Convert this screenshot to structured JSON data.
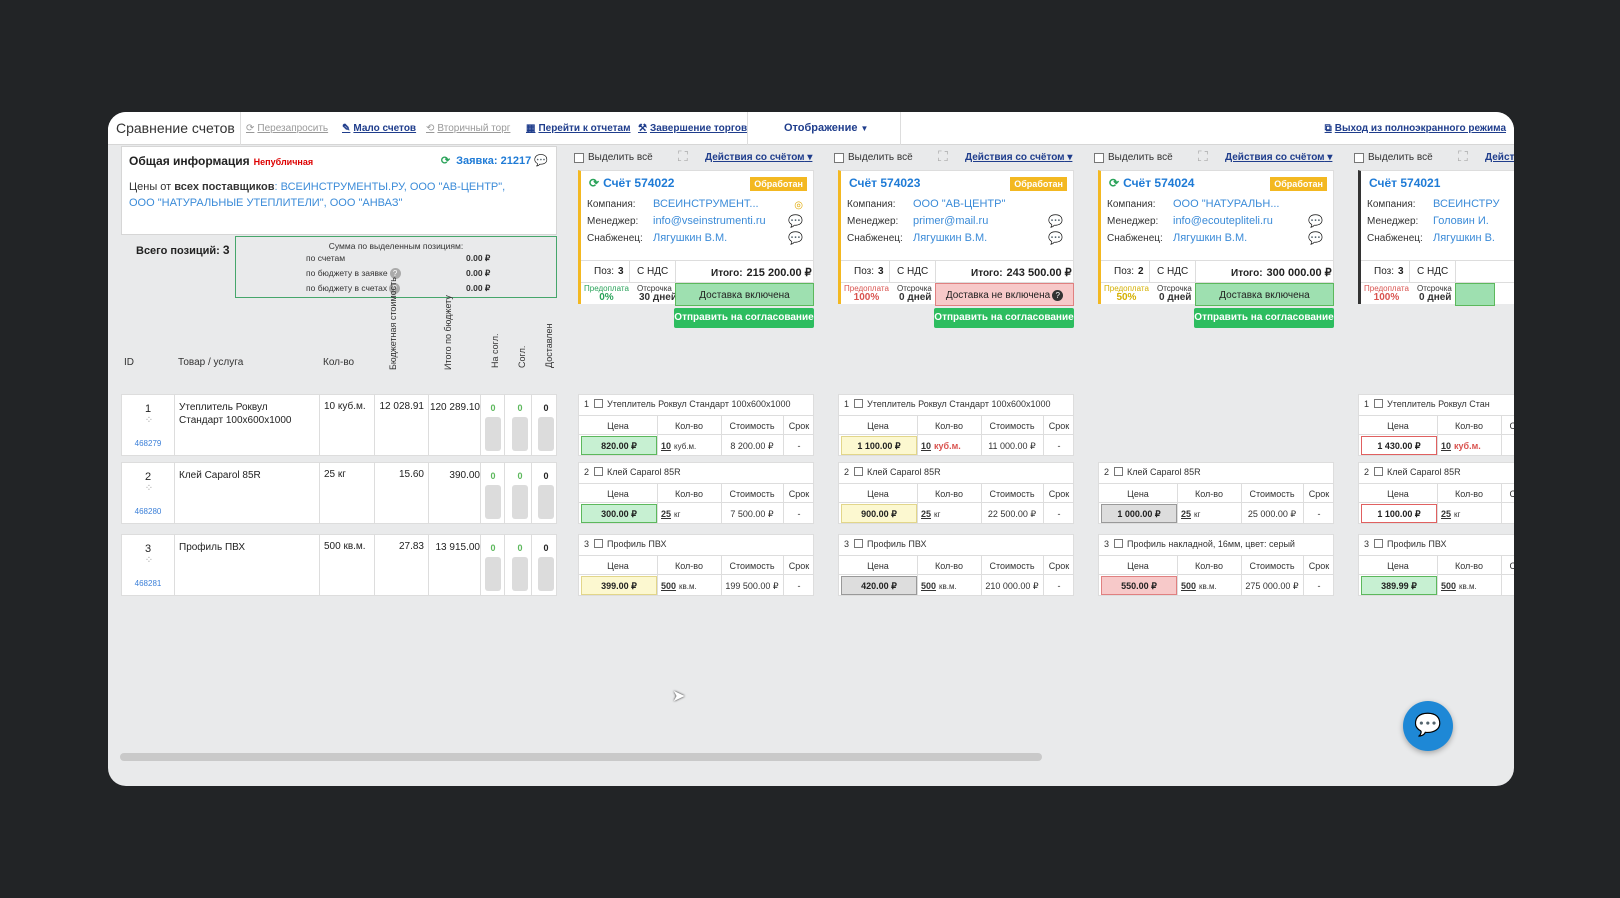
{
  "toolbar": {
    "title": "Сравнение счетов",
    "requery": "Перезапросить",
    "few_invoices": "Мало счетов",
    "secondary": "Вторичный торг",
    "reports": "Перейти к отчетам",
    "finish": "Завершение торгов",
    "display": "Отображение",
    "exit": "Выход из полноэкранного режима"
  },
  "info": {
    "title": "Общая информация",
    "badge": "Непубличная",
    "request": "Заявка: 21217",
    "prices_prefix": "Цены от",
    "prices_bold": "всех поставщиков",
    "prices_suppliers": ": ВСЕИНСТРУМЕНТЫ.РУ, ООО \"АВ-ЦЕНТР\", ООО \"НАТУРАЛЬНЫЕ УТЕПЛИТЕЛИ\", ООО \"АНВАЗ\"",
    "total_positions_label": "Всего позиций:",
    "total_positions": "3",
    "sum_caption": "Сумма по выделенным позициям:",
    "sum_rows": [
      {
        "label": "по счетам",
        "value": "0.00 ₽",
        "q": false
      },
      {
        "label": "по бюджету в заявке",
        "value": "0.00 ₽",
        "q": true
      },
      {
        "label": "по бюджету в счетах",
        "value": "0.00 ₽",
        "q": true
      }
    ]
  },
  "headers": {
    "id": "ID",
    "item": "Товар / услуга",
    "qty": "Кол-во",
    "budget": "Бюджетная стоимость",
    "total_budget": "Итого по бюджету",
    "on_approval": "На согл.",
    "approved": "Согл.",
    "delivered": "Доставлен"
  },
  "positions": [
    {
      "id": "1",
      "num": "468279",
      "name": "Утеплитель Роквул Стандарт 100x600x1000",
      "qty": "10 куб.м.",
      "budget": "12 028.91",
      "total": "120 289.10",
      "a": "0",
      "b": "0",
      "c": "0"
    },
    {
      "id": "2",
      "num": "468280",
      "name": "Клей Caparol 85R",
      "qty": "25 кг",
      "budget": "15.60",
      "total": "390.00",
      "a": "0",
      "b": "0",
      "c": "0"
    },
    {
      "id": "3",
      "num": "468281",
      "name": "Профиль ПВХ",
      "qty": "500 кв.м.",
      "budget": "27.83",
      "total": "13 915.00",
      "a": "0",
      "b": "0",
      "c": "0"
    }
  ],
  "common": {
    "select_all": "Выделить всё",
    "actions": "Действия со счётом",
    "company": "Компания:",
    "manager": "Менеджер:",
    "supplier": "Снабженец:",
    "pos": "Поз:",
    "vat": "С НДС",
    "total": "Итого:",
    "prepay": "Предоплата",
    "delay": "Отсрочка",
    "send": "Отправить на согласование",
    "price": "Цена",
    "qty": "Кол-во",
    "cost": "Стоимость",
    "term": "Срок"
  },
  "invoices": [
    {
      "num": "Счёт 574022",
      "status": "Обработан",
      "company": "ВСЕИНСТРУМЕНТ...",
      "manager": "info@vseinstrumenti.ru",
      "supplier": "Лягушкин В.М.",
      "pos": "3",
      "total": "215 200.00 ₽",
      "prepay": "0%",
      "delay": "30 дней",
      "delivery": "Доставка включена",
      "items": [
        {
          "n": "1",
          "name": "Утеплитель Роквул Стандарт 100x600x1000",
          "price": "820.00 ₽",
          "q": "10",
          "u": "куб.м.",
          "cost": "8 200.00 ₽",
          "term": "-"
        },
        {
          "n": "2",
          "name": "Клей Caparol 85R",
          "price": "300.00 ₽",
          "q": "25",
          "u": "кг",
          "cost": "7 500.00 ₽",
          "term": "-"
        },
        {
          "n": "3",
          "name": "Профиль ПВХ",
          "price": "399.00 ₽",
          "q": "500",
          "u": "кв.м.",
          "cost": "199 500.00 ₽",
          "term": "-"
        }
      ]
    },
    {
      "num": "Счёт 574023",
      "status": "Обработан",
      "company": "ООО \"АВ-ЦЕНТР\"",
      "manager": "primer@mail.ru",
      "supplier": "Лягушкин В.М.",
      "pos": "3",
      "total": "243 500.00 ₽",
      "prepay": "100%",
      "delay": "0 дней",
      "delivery": "Доставка не включена",
      "items": [
        {
          "n": "1",
          "name": "Утеплитель Роквул Стандарт 100x600x1000",
          "price": "1 100.00 ₽",
          "q": "10",
          "u": "куб.м.",
          "cost": "11 000.00 ₽",
          "term": "-"
        },
        {
          "n": "2",
          "name": "Клей Caparol 85R",
          "price": "900.00 ₽",
          "q": "25",
          "u": "кг",
          "cost": "22 500.00 ₽",
          "term": "-"
        },
        {
          "n": "3",
          "name": "Профиль ПВХ",
          "price": "420.00 ₽",
          "q": "500",
          "u": "кв.м.",
          "cost": "210 000.00 ₽",
          "term": "-"
        }
      ]
    },
    {
      "num": "Счёт 574024",
      "status": "Обработан",
      "company": "ООО \"НАТУРАЛЬН...",
      "manager": "info@ecouteplitelі.ru",
      "supplier": "Лягушкин В.М.",
      "pos": "2",
      "total": "300 000.00 ₽",
      "prepay": "50%",
      "delay": "0 дней",
      "delivery": "Доставка включена",
      "items": [
        {
          "n": "2",
          "name": "Клей Caparol 85R",
          "price": "1 000.00 ₽",
          "q": "25",
          "u": "кг",
          "cost": "25 000.00 ₽",
          "term": "-"
        },
        {
          "n": "3",
          "name": "Профиль накладной, 16мм, цвет: серый",
          "price": "550.00 ₽",
          "q": "500",
          "u": "кв.м.",
          "cost": "275 000.00 ₽",
          "term": "-"
        }
      ]
    },
    {
      "num": "Счёт 574021",
      "company": "ВСЕИНСТРУ",
      "manager": "Головин И.",
      "supplier": "Лягушкин В.",
      "pos": "3",
      "prepay": "100%",
      "delay": "0 дней",
      "items": [
        {
          "n": "1",
          "name": "Утеплитель Роквул Стан",
          "price": "1 430.00 ₽",
          "q": "10",
          "u": "куб.м."
        },
        {
          "n": "2",
          "name": "Клей Caparol 85R",
          "price": "1 100.00 ₽",
          "q": "25",
          "u": "кг"
        },
        {
          "n": "3",
          "name": "Профиль ПВХ",
          "price": "389.99 ₽",
          "q": "500",
          "u": "кв.м."
        }
      ]
    }
  ]
}
